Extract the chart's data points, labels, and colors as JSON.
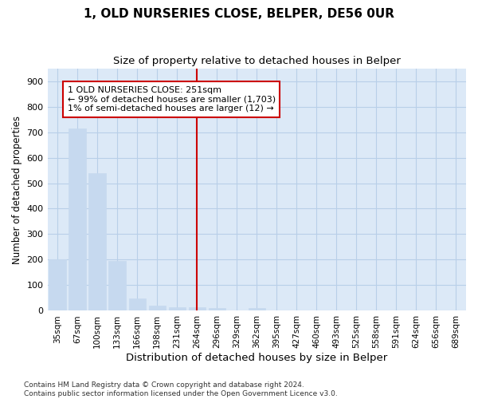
{
  "title": "1, OLD NURSERIES CLOSE, BELPER, DE56 0UR",
  "subtitle": "Size of property relative to detached houses in Belper",
  "xlabel": "Distribution of detached houses by size in Belper",
  "ylabel": "Number of detached properties",
  "footnote": "Contains HM Land Registry data © Crown copyright and database right 2024.\nContains public sector information licensed under the Open Government Licence v3.0.",
  "bar_color": "#c6d9ef",
  "bar_edge_color": "#c6d9ef",
  "grid_color": "#b8cfe8",
  "vline_x": 7,
  "vline_color": "#cc0000",
  "annotation_text": "1 OLD NURSERIES CLOSE: 251sqm\n← 99% of detached houses are smaller (1,703)\n1% of semi-detached houses are larger (12) →",
  "annotation_box_color": "white",
  "annotation_box_edge_color": "#cc0000",
  "categories": [
    "35sqm",
    "67sqm",
    "100sqm",
    "133sqm",
    "166sqm",
    "198sqm",
    "231sqm",
    "264sqm",
    "296sqm",
    "329sqm",
    "362sqm",
    "395sqm",
    "427sqm",
    "460sqm",
    "493sqm",
    "525sqm",
    "558sqm",
    "591sqm",
    "624sqm",
    "656sqm",
    "689sqm"
  ],
  "values": [
    200,
    715,
    540,
    195,
    47,
    20,
    15,
    15,
    10,
    0,
    10,
    0,
    0,
    0,
    0,
    0,
    0,
    0,
    0,
    0,
    0
  ],
  "ylim": [
    0,
    950
  ],
  "yticks": [
    0,
    100,
    200,
    300,
    400,
    500,
    600,
    700,
    800,
    900
  ],
  "background_color": "#dce9f7"
}
